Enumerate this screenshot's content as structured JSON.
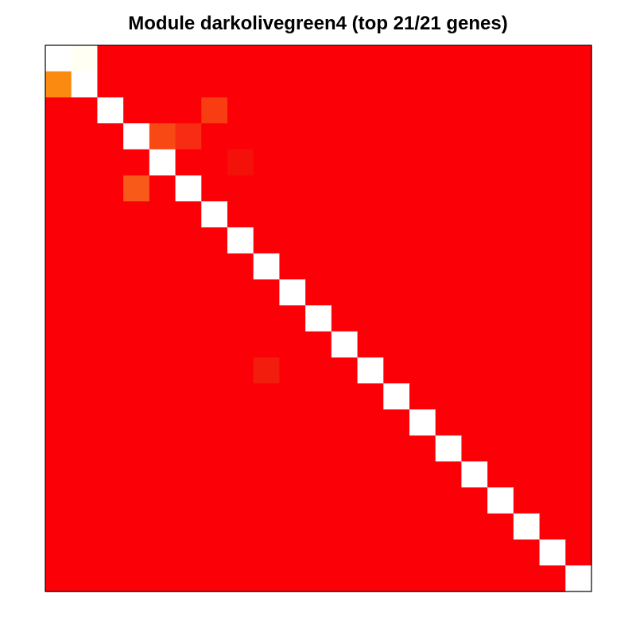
{
  "chart_data": {
    "type": "heatmap",
    "title": "Module darkolivegreen4 (top 21/21 genes)",
    "xlabel": "",
    "ylabel": "",
    "grid": false,
    "legend": "none",
    "rows": 21,
    "cols": 21,
    "base_color": "#fc0007",
    "diagonal_color": "#ffffff",
    "border_color": "#000000",
    "highlight_cells": [
      {
        "row": 0,
        "col": 1,
        "color": "#fffff4"
      },
      {
        "row": 1,
        "col": 0,
        "color": "#fb8b10"
      },
      {
        "row": 2,
        "col": 6,
        "color": "#f83d12"
      },
      {
        "row": 3,
        "col": 4,
        "color": "#f84914"
      },
      {
        "row": 3,
        "col": 5,
        "color": "#f82c12"
      },
      {
        "row": 4,
        "col": 7,
        "color": "#f31109"
      },
      {
        "row": 5,
        "col": 3,
        "color": "#f85a19"
      },
      {
        "row": 12,
        "col": 8,
        "color": "#f31d0e"
      }
    ]
  }
}
